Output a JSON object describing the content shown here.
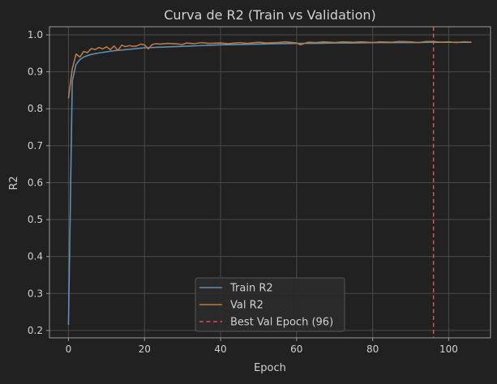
{
  "chart_data": {
    "type": "line",
    "title": "Curva de R2 (Train vs Validation)",
    "xlabel": "Epoch",
    "ylabel": "R2",
    "xlim": [
      -5,
      111
    ],
    "ylim": [
      0.18,
      1.022
    ],
    "x_ticks": [
      0,
      20,
      40,
      60,
      80,
      100
    ],
    "y_ticks": [
      0.2,
      0.3,
      0.4,
      0.5,
      0.6,
      0.7,
      0.8,
      0.9,
      1.0
    ],
    "x_tick_labels": [
      "0",
      "20",
      "40",
      "60",
      "80",
      "100"
    ],
    "y_tick_labels": [
      "0.2",
      "0.3",
      "0.4",
      "0.5",
      "0.6",
      "0.7",
      "0.8",
      "0.9",
      "1.0"
    ],
    "grid": true,
    "legend_position": "lower-center",
    "series": [
      {
        "name": "Train R2",
        "color": "#5f8fb4",
        "style": "solid",
        "points": [
          [
            0,
            0.215
          ],
          [
            1,
            0.875
          ],
          [
            2,
            0.92
          ],
          [
            3,
            0.933
          ],
          [
            4,
            0.94
          ],
          [
            5,
            0.944
          ],
          [
            6,
            0.947
          ],
          [
            8,
            0.951
          ],
          [
            10,
            0.954
          ],
          [
            12,
            0.957
          ],
          [
            15,
            0.96
          ],
          [
            18,
            0.963
          ],
          [
            20,
            0.965
          ],
          [
            25,
            0.967
          ],
          [
            30,
            0.969
          ],
          [
            35,
            0.971
          ],
          [
            40,
            0.973
          ],
          [
            45,
            0.974
          ],
          [
            50,
            0.975
          ],
          [
            55,
            0.976
          ],
          [
            60,
            0.977
          ],
          [
            65,
            0.977
          ],
          [
            70,
            0.978
          ],
          [
            75,
            0.978
          ],
          [
            80,
            0.979
          ],
          [
            85,
            0.979
          ],
          [
            90,
            0.979
          ],
          [
            95,
            0.98
          ],
          [
            100,
            0.98
          ],
          [
            106,
            0.98
          ]
        ]
      },
      {
        "name": "Val R2",
        "color": "#b77a46",
        "style": "solid",
        "points": [
          [
            0,
            0.828
          ],
          [
            1,
            0.908
          ],
          [
            2,
            0.948
          ],
          [
            3,
            0.94
          ],
          [
            4,
            0.955
          ],
          [
            5,
            0.952
          ],
          [
            6,
            0.963
          ],
          [
            7,
            0.96
          ],
          [
            8,
            0.966
          ],
          [
            9,
            0.962
          ],
          [
            10,
            0.968
          ],
          [
            11,
            0.96
          ],
          [
            12,
            0.97
          ],
          [
            13,
            0.958
          ],
          [
            14,
            0.972
          ],
          [
            15,
            0.968
          ],
          [
            16,
            0.971
          ],
          [
            17,
            0.969
          ],
          [
            18,
            0.97
          ],
          [
            19,
            0.975
          ],
          [
            20,
            0.973
          ],
          [
            21,
            0.962
          ],
          [
            22,
            0.974
          ],
          [
            23,
            0.976
          ],
          [
            24,
            0.975
          ],
          [
            26,
            0.977
          ],
          [
            28,
            0.976
          ],
          [
            30,
            0.974
          ],
          [
            31,
            0.978
          ],
          [
            33,
            0.976
          ],
          [
            35,
            0.979
          ],
          [
            37,
            0.977
          ],
          [
            40,
            0.978
          ],
          [
            42,
            0.976
          ],
          [
            45,
            0.979
          ],
          [
            47,
            0.977
          ],
          [
            50,
            0.98
          ],
          [
            52,
            0.978
          ],
          [
            55,
            0.979
          ],
          [
            57,
            0.981
          ],
          [
            60,
            0.978
          ],
          [
            61,
            0.973
          ],
          [
            63,
            0.98
          ],
          [
            65,
            0.979
          ],
          [
            67,
            0.981
          ],
          [
            70,
            0.979
          ],
          [
            72,
            0.981
          ],
          [
            75,
            0.98
          ],
          [
            77,
            0.981
          ],
          [
            80,
            0.979
          ],
          [
            82,
            0.981
          ],
          [
            85,
            0.98
          ],
          [
            87,
            0.982
          ],
          [
            90,
            0.981
          ],
          [
            92,
            0.979
          ],
          [
            94,
            0.982
          ],
          [
            96,
            0.982
          ],
          [
            98,
            0.98
          ],
          [
            100,
            0.981
          ],
          [
            102,
            0.979
          ],
          [
            104,
            0.981
          ],
          [
            106,
            0.98
          ]
        ]
      }
    ],
    "vlines": [
      {
        "name": "Best Val Epoch (96)",
        "x": 96,
        "color": "#d9534f",
        "style": "dashed"
      }
    ],
    "legend": [
      {
        "label": "Train R2",
        "color": "#5f8fb4",
        "style": "solid"
      },
      {
        "label": "Val R2",
        "color": "#b77a46",
        "style": "solid"
      },
      {
        "label": "Best Val Epoch (96)",
        "color": "#d9534f",
        "style": "dashed"
      }
    ],
    "colors": {
      "background": "#212121",
      "plot_bg": "#212121",
      "axes": "#9a9a9a",
      "grid": "#4a4a4a",
      "text": "#d0d0d0",
      "legend_bg": "#2b2b2b",
      "legend_border": "#555555"
    }
  }
}
